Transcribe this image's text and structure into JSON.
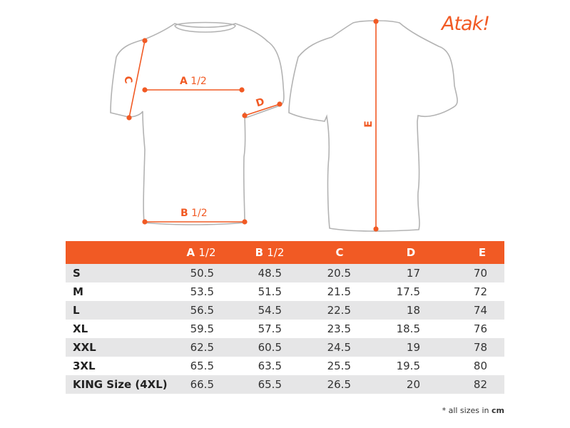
{
  "brand": {
    "logo": "Atak!"
  },
  "diagram": {
    "labels": {
      "a": "A",
      "b": "B",
      "half": "1/2",
      "c": "C",
      "d": "D",
      "e": "E"
    },
    "accent": "#f15a24",
    "outline": "#b3b3b3"
  },
  "table": {
    "headers": [
      {
        "letter": "A",
        "suffix": "1/2"
      },
      {
        "letter": "B",
        "suffix": "1/2"
      },
      {
        "letter": "C",
        "suffix": ""
      },
      {
        "letter": "D",
        "suffix": ""
      },
      {
        "letter": "E",
        "suffix": ""
      }
    ],
    "rows": [
      {
        "size": "S",
        "values": [
          "50.5",
          "48.5",
          "20.5",
          "17",
          "70"
        ]
      },
      {
        "size": "M",
        "values": [
          "53.5",
          "51.5",
          "21.5",
          "17.5",
          "72"
        ]
      },
      {
        "size": "L",
        "values": [
          "56.5",
          "54.5",
          "22.5",
          "18",
          "74"
        ]
      },
      {
        "size": "XL",
        "values": [
          "59.5",
          "57.5",
          "23.5",
          "18.5",
          "76"
        ]
      },
      {
        "size": "XXL",
        "values": [
          "62.5",
          "60.5",
          "24.5",
          "19",
          "78"
        ]
      },
      {
        "size": "3XL",
        "values": [
          "65.5",
          "63.5",
          "25.5",
          "19.5",
          "80"
        ]
      },
      {
        "size": "KING Size (4XL)",
        "values": [
          "66.5",
          "65.5",
          "26.5",
          "20",
          "82"
        ]
      }
    ],
    "header_color": "#f15a24",
    "stripe_color": "#e6e6e7"
  },
  "footnote": {
    "text": "* all sizes in ",
    "unit": "cm"
  }
}
